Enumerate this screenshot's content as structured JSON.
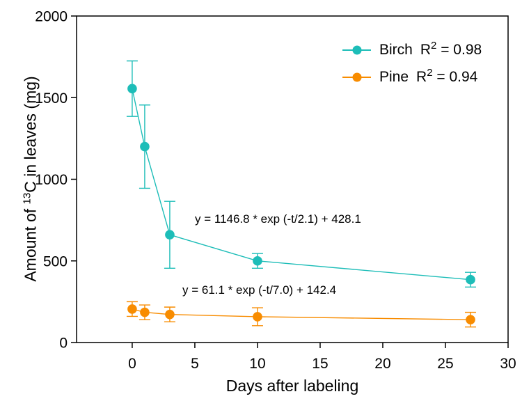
{
  "page": {
    "background_color": "#FFFFFF",
    "axis_color": "#000000"
  },
  "chart_data": {
    "type": "line",
    "title": "",
    "xlabel": "Days after labeling",
    "ylabel": "Amount of 13C in leaves (mg)",
    "ylabel_parts": {
      "prefix": "Amount of ",
      "superscript": "13",
      "suffix": "C in leaves (mg)"
    },
    "xlim": [
      -4.44,
      30
    ],
    "ylim": [
      0,
      2000
    ],
    "x_ticks": [
      0,
      5,
      10,
      15,
      20,
      25,
      30
    ],
    "y_ticks": [
      0,
      500,
      1000,
      1500,
      2000
    ],
    "grid": false,
    "legend_position": "upper right",
    "series": [
      {
        "name": "Birch",
        "color": "#1DBDB8",
        "marker": "circle",
        "r_squared": "0.98",
        "r_label": {
          "symbol": "R",
          "exponent": "2",
          "value": " = 0.98"
        },
        "equation": "y = 1146.8 * exp (-t/2.1) + 428.1",
        "x": [
          0,
          1,
          3,
          10,
          27
        ],
        "y": [
          1555,
          1200,
          660,
          500,
          385
        ],
        "yerr": [
          170,
          255,
          205,
          45,
          45
        ]
      },
      {
        "name": "Pine",
        "color": "#F88C00",
        "marker": "circle",
        "r_squared": "0.94",
        "r_label": {
          "symbol": "R",
          "exponent": "2",
          "value": " = 0.94"
        },
        "equation": "y = 61.1 * exp (-t/7.0) + 142.4",
        "x": [
          0,
          1,
          3,
          10,
          27
        ],
        "y": [
          205,
          185,
          172,
          158,
          140
        ],
        "yerr": [
          45,
          45,
          45,
          55,
          45
        ]
      }
    ]
  }
}
